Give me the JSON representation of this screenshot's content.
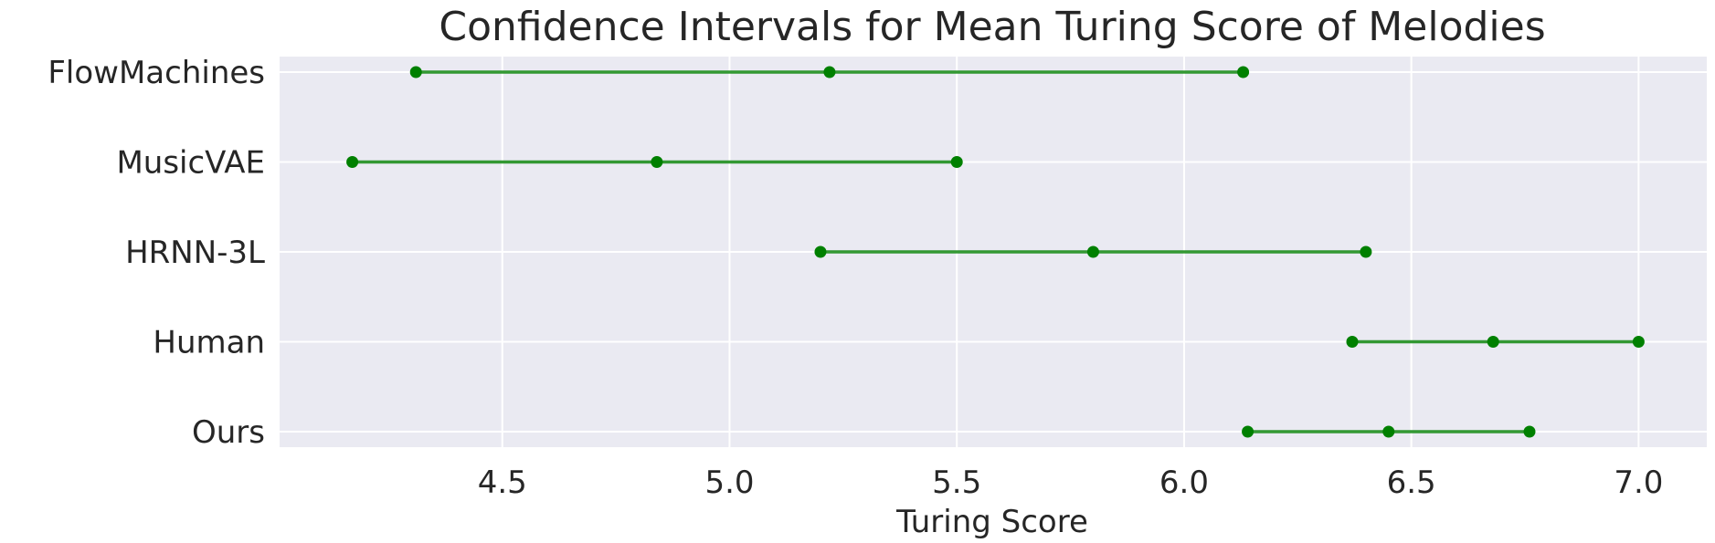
{
  "chart_data": {
    "type": "scatter",
    "title": "Confidence Intervals for Mean Turing Score of Melodies",
    "xlabel": "Turing Score",
    "ylabel": "",
    "xlim": [
      4.01,
      7.15
    ],
    "xticks": [
      "4.5",
      "5.0",
      "5.5",
      "6.0",
      "6.5",
      "7.0"
    ],
    "xtick_values": [
      4.5,
      5.0,
      5.5,
      6.0,
      6.5,
      7.0
    ],
    "categories": [
      "FlowMachines",
      "MusicVAE",
      "HRNN-3L",
      "Human",
      "Ours"
    ],
    "intervals": [
      {
        "category": "FlowMachines",
        "lower": 4.31,
        "mean": 5.22,
        "upper": 6.13
      },
      {
        "category": "MusicVAE",
        "lower": 4.17,
        "mean": 4.84,
        "upper": 5.5
      },
      {
        "category": "HRNN-3L",
        "lower": 5.2,
        "mean": 5.8,
        "upper": 6.4
      },
      {
        "category": "Human",
        "lower": 6.37,
        "mean": 6.68,
        "upper": 7.0
      },
      {
        "category": "Ours",
        "lower": 6.14,
        "mean": 6.45,
        "upper": 6.76
      }
    ],
    "grid": true,
    "colors": {
      "series": "#008000",
      "background": "#eaeaf2",
      "grid": "#ffffff",
      "text": "#262626"
    }
  }
}
